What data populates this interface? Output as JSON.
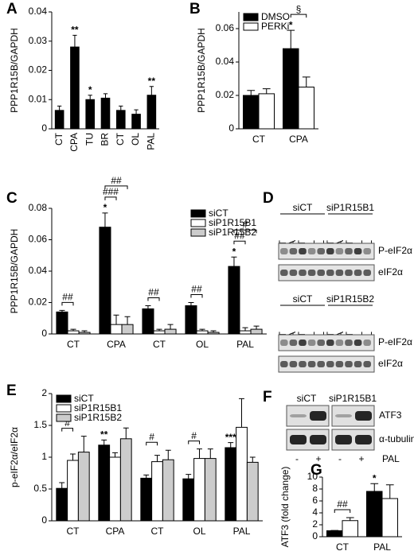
{
  "chart_data": [
    {
      "type": "bar",
      "panel": "A",
      "y_label": "PPP1R15B/GAPDH",
      "categories": [
        "CT",
        "CPA",
        "TU",
        "BR",
        "CT",
        "OL",
        "PAL"
      ],
      "values": [
        0.0063,
        0.028,
        0.01,
        0.0105,
        0.0063,
        0.005,
        0.0115
      ],
      "errors": [
        0.0015,
        0.004,
        0.0015,
        0.0015,
        0.0015,
        0.0015,
        0.003
      ],
      "annotations": [
        null,
        "**",
        "*",
        null,
        null,
        null,
        "**"
      ],
      "color": "#000000",
      "ylim": [
        0,
        0.04
      ],
      "yticks": [
        0,
        0.01,
        0.02,
        0.03,
        0.04
      ]
    },
    {
      "type": "bar",
      "panel": "B",
      "y_label": "PPP1R15B/GAPDH",
      "categories": [
        "CT",
        "CPA"
      ],
      "series": [
        {
          "name": "DMSO",
          "color": "#000000",
          "values": [
            0.02,
            0.048
          ],
          "errors": [
            0.003,
            0.011
          ]
        },
        {
          "name": "PERKi",
          "color": "#ffffff",
          "values": [
            0.021,
            0.025
          ],
          "errors": [
            0.003,
            0.006
          ]
        }
      ],
      "annotations": [
        null,
        "*"
      ],
      "brackets": [
        [],
        [
          "§"
        ]
      ],
      "legend": "upper left",
      "ylim": [
        0,
        0.07
      ],
      "yticks": [
        0,
        0.02,
        0.04,
        0.06
      ]
    },
    {
      "type": "bar",
      "panel": "C",
      "y_label": "PPP1R15B/GAPDH",
      "categories": [
        "CT",
        "CPA",
        "CT",
        "OL",
        "PAL"
      ],
      "series": [
        {
          "name": "siCT",
          "color": "#000000",
          "values": [
            0.014,
            0.068,
            0.016,
            0.018,
            0.043
          ],
          "errors": [
            0.001,
            0.009,
            0.002,
            0.002,
            0.006
          ]
        },
        {
          "name": "siP1R15B1",
          "color": "#ffffff",
          "values": [
            0.002,
            0.006,
            0.002,
            0.002,
            0.002
          ],
          "errors": [
            0.001,
            0.006,
            0.001,
            0.001,
            0.002
          ]
        },
        {
          "name": "siP1R15B2",
          "color": "#cccccc",
          "values": [
            0.001,
            0.006,
            0.003,
            0.001,
            0.003
          ],
          "errors": [
            0.001,
            0.005,
            0.003,
            0.001,
            0.002
          ]
        }
      ],
      "annotations": [
        null,
        "*",
        null,
        null,
        "*"
      ],
      "brackets": [
        [
          "##"
        ],
        [
          "###",
          "##"
        ],
        [
          "##"
        ],
        [
          "##"
        ],
        [
          "##",
          "#"
        ]
      ],
      "legend": "upper right",
      "ylim": [
        0,
        0.08
      ],
      "yticks": [
        0,
        0.02,
        0.04,
        0.06,
        0.08
      ]
    },
    {
      "type": "bar",
      "panel": "E",
      "y_label": "p-eIF2α/eIF2α",
      "categories": [
        "CT",
        "CPA",
        "CT",
        "OL",
        "PAL"
      ],
      "series": [
        {
          "name": "siCT",
          "color": "#000000",
          "values": [
            0.51,
            1.19,
            0.67,
            0.66,
            1.15
          ],
          "errors": [
            0.09,
            0.08,
            0.05,
            0.07,
            0.08
          ]
        },
        {
          "name": "siP1R15B1",
          "color": "#ffffff",
          "values": [
            0.95,
            1.0,
            0.93,
            0.98,
            1.47
          ],
          "errors": [
            0.1,
            0.07,
            0.1,
            0.15,
            0.45
          ]
        },
        {
          "name": "siP1R15B2",
          "color": "#cccccc",
          "values": [
            1.08,
            1.29,
            0.96,
            0.98,
            0.92
          ],
          "errors": [
            0.25,
            0.17,
            0.15,
            0.15,
            0.08
          ]
        }
      ],
      "annotations": [
        null,
        "**",
        null,
        null,
        "***"
      ],
      "brackets": [
        [
          "#"
        ],
        [],
        [
          "#"
        ],
        [
          "#"
        ],
        []
      ],
      "legend": "upper left",
      "ylim": [
        0,
        2
      ],
      "yticks": [
        0,
        0.5,
        1,
        1.5,
        2
      ]
    },
    {
      "type": "bar",
      "panel": "G",
      "y_label": "ATF3 (fold change)",
      "categories": [
        "CT",
        "PAL"
      ],
      "series": [
        {
          "color": "#000000",
          "values": [
            1.0,
            7.6
          ],
          "errors": [
            0.05,
            1.3
          ]
        },
        {
          "color": "#ffffff",
          "values": [
            2.7,
            6.4
          ],
          "errors": [
            0.5,
            2.3
          ]
        }
      ],
      "annotations": [
        null,
        "*"
      ],
      "brackets": [
        [
          "##"
        ],
        []
      ],
      "ylim": [
        0,
        10
      ],
      "yticks": [
        0,
        2,
        4,
        6,
        8,
        10
      ]
    }
  ],
  "blot_d": {
    "panel": "D",
    "blocks": [
      {
        "groups": [
          {
            "title": "siCT",
            "lanes": [
              "CT",
              "CPA",
              "CT",
              "OL",
              "PAL"
            ]
          },
          {
            "title": "siP1R15B1",
            "lanes": [
              "CT",
              "CPA",
              "CT",
              "OL",
              "PAL"
            ]
          }
        ],
        "rows": [
          "P-eIF2α",
          "eIF2α"
        ]
      },
      {
        "groups": [
          {
            "title": "siCT",
            "lanes": [
              "CT",
              "CPA",
              "CT",
              "OL",
              "PAL"
            ]
          },
          {
            "title": "siP1R15B2",
            "lanes": [
              "CT",
              "CPA",
              "CT",
              "OL",
              "PAL"
            ]
          }
        ],
        "rows": [
          "P-eIF2α",
          "eIF2α"
        ]
      }
    ]
  },
  "blot_f": {
    "panel": "F",
    "groups": [
      "siCT",
      "siP1R15B1"
    ],
    "rows": [
      "ATF3",
      "α-tubulin"
    ],
    "treatment": [
      "-",
      "+",
      "-",
      "+"
    ],
    "treatment_label": "PAL"
  }
}
